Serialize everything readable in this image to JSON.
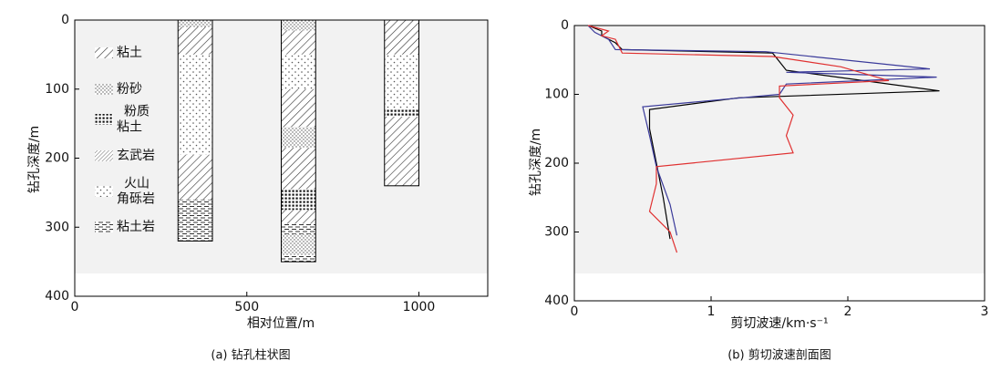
{
  "chart_data": [
    {
      "type": "borehole",
      "xlabel": "相对位置/m",
      "ylabel": "钻孔深度/m",
      "caption": "(a) 钻孔柱状图",
      "xlim": [
        0,
        1200
      ],
      "xticks": [
        0,
        500,
        1000
      ],
      "ylim": [
        0,
        400
      ],
      "yticks": [
        0,
        100,
        200,
        300,
        400
      ],
      "y_inverted": true,
      "legend": [
        {
          "lines": [
            "粘土"
          ],
          "pattern": "hatch"
        },
        {
          "lines": [
            "粉砂"
          ],
          "pattern": "dense-dots"
        },
        {
          "lines": [
            "粉质",
            "粘土"
          ],
          "pattern": "squares"
        },
        {
          "lines": [
            "玄武岩"
          ],
          "pattern": "fine-hatch"
        },
        {
          "lines": [
            "火山",
            "角砾岩"
          ],
          "pattern": "sparse-dots"
        },
        {
          "lines": [
            "粘土岩"
          ],
          "pattern": "dashes"
        }
      ],
      "boreholes": [
        {
          "x": [
            300,
            400
          ],
          "layers": [
            {
              "lith": 1,
              "thickness": 10
            },
            {
              "lith": 0,
              "thickness": 40
            },
            {
              "lith": 4,
              "thickness": 145
            },
            {
              "lith": 0,
              "thickness": 65
            },
            {
              "lith": 5,
              "thickness": 60
            }
          ]
        },
        {
          "x": [
            600,
            700
          ],
          "layers": [
            {
              "lith": 1,
              "thickness": 15
            },
            {
              "lith": 0,
              "thickness": 35
            },
            {
              "lith": 4,
              "thickness": 50
            },
            {
              "lith": 0,
              "thickness": 55
            },
            {
              "lith": 1,
              "thickness": 30
            },
            {
              "lith": 0,
              "thickness": 60
            },
            {
              "lith": 2,
              "thickness": 30
            },
            {
              "lith": 0,
              "thickness": 20
            },
            {
              "lith": 5,
              "thickness": 15
            },
            {
              "lith": 1,
              "thickness": 30
            },
            {
              "lith": 5,
              "thickness": 10
            }
          ]
        },
        {
          "x": [
            900,
            1000
          ],
          "layers": [
            {
              "lith": 0,
              "thickness": 50
            },
            {
              "lith": 4,
              "thickness": 80
            },
            {
              "lith": 2,
              "thickness": 10
            },
            {
              "lith": 0,
              "thickness": 100
            }
          ]
        }
      ]
    },
    {
      "type": "line",
      "xlabel": "剪切波速/km·s⁻¹",
      "ylabel": "钻孔深度/m",
      "caption": "(b) 剪切波速剖面图",
      "xlim": [
        0,
        3
      ],
      "xticks": [
        0,
        1,
        2,
        3
      ],
      "ylim": [
        0,
        400
      ],
      "yticks": [
        0,
        100,
        200,
        300,
        400
      ],
      "y_inverted": true,
      "series": [
        {
          "color": "#000000",
          "x": [
            0.1,
            0.2,
            0.2,
            0.3,
            0.35,
            1.45,
            1.55,
            2.67,
            1.2,
            0.55,
            0.55,
            0.6,
            0.65,
            0.7
          ],
          "values": [
            0,
            8,
            15,
            25,
            35,
            40,
            65,
            95,
            105,
            122,
            150,
            200,
            250,
            310
          ]
        },
        {
          "color": "#3a3a9a",
          "x": [
            0.1,
            0.15,
            0.25,
            0.3,
            1.4,
            2.6,
            1.55,
            2.65,
            1.55,
            1.5,
            0.5,
            0.55,
            0.6,
            0.7,
            0.75
          ],
          "values": [
            0,
            10,
            20,
            35,
            38,
            63,
            68,
            75,
            85,
            100,
            118,
            160,
            205,
            260,
            305
          ]
        },
        {
          "color": "#e03030",
          "x": [
            0.1,
            0.25,
            0.2,
            0.3,
            0.35,
            1.45,
            1.95,
            2.3,
            1.5,
            1.5,
            1.6,
            1.55,
            1.6,
            0.6,
            0.6,
            0.55,
            0.7,
            0.75
          ],
          "values": [
            0,
            8,
            15,
            20,
            40,
            45,
            60,
            80,
            88,
            105,
            130,
            160,
            185,
            205,
            230,
            270,
            300,
            330
          ]
        }
      ]
    }
  ]
}
